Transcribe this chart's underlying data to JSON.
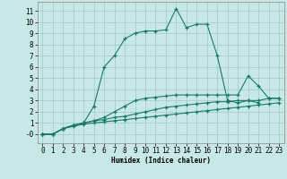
{
  "xlabel": "Humidex (Indice chaleur)",
  "bg_color": "#c8e8e8",
  "grid_color": "#a0c8c8",
  "line_color": "#1a7a6a",
  "xlim": [
    -0.5,
    23.5
  ],
  "ylim": [
    -0.8,
    11.8
  ],
  "xticks": [
    0,
    1,
    2,
    3,
    4,
    5,
    6,
    7,
    8,
    9,
    10,
    11,
    12,
    13,
    14,
    15,
    16,
    17,
    18,
    19,
    20,
    21,
    22,
    23
  ],
  "yticks": [
    0,
    1,
    2,
    3,
    4,
    5,
    6,
    7,
    8,
    9,
    10,
    11
  ],
  "ytick_labels": [
    "-0",
    "1",
    "2",
    "3",
    "4",
    "5",
    "6",
    "7",
    "8",
    "9",
    "10",
    "11"
  ],
  "lines": [
    {
      "x": [
        0,
        1,
        2,
        3,
        4,
        5,
        6,
        7,
        8,
        9,
        10,
        11,
        12,
        13,
        14,
        15,
        16,
        17,
        18,
        19,
        20,
        21
      ],
      "y": [
        0,
        0,
        0.5,
        0.8,
        1.0,
        2.5,
        6.0,
        7.0,
        8.5,
        9.0,
        9.2,
        9.2,
        9.3,
        11.2,
        9.5,
        9.8,
        9.8,
        7.0,
        3.0,
        2.8,
        3.0,
        2.8
      ]
    },
    {
      "x": [
        0,
        1,
        2,
        3,
        4,
        5,
        6,
        7,
        8,
        9,
        10,
        11,
        12,
        13,
        14,
        15,
        16,
        17,
        18,
        19,
        20,
        21,
        22,
        23
      ],
      "y": [
        0,
        0,
        0.5,
        0.8,
        1.0,
        1.2,
        1.5,
        2.0,
        2.5,
        3.0,
        3.2,
        3.3,
        3.4,
        3.5,
        3.5,
        3.5,
        3.5,
        3.5,
        3.5,
        3.5,
        5.2,
        4.3,
        3.2,
        3.2
      ]
    },
    {
      "x": [
        0,
        1,
        2,
        3,
        4,
        5,
        6,
        7,
        8,
        9,
        10,
        11,
        12,
        13,
        14,
        15,
        16,
        17,
        18,
        19,
        20,
        21,
        22,
        23
      ],
      "y": [
        0,
        0,
        0.5,
        0.8,
        1.0,
        1.2,
        1.3,
        1.5,
        1.6,
        1.8,
        2.0,
        2.2,
        2.4,
        2.5,
        2.6,
        2.7,
        2.8,
        2.9,
        2.9,
        3.0,
        3.0,
        3.0,
        3.2,
        3.2
      ]
    },
    {
      "x": [
        0,
        1,
        2,
        3,
        4,
        5,
        6,
        7,
        8,
        9,
        10,
        11,
        12,
        13,
        14,
        15,
        16,
        17,
        18,
        19,
        20,
        21,
        22,
        23
      ],
      "y": [
        0,
        0,
        0.5,
        0.7,
        0.9,
        1.0,
        1.1,
        1.2,
        1.3,
        1.4,
        1.5,
        1.6,
        1.7,
        1.8,
        1.9,
        2.0,
        2.1,
        2.2,
        2.3,
        2.4,
        2.5,
        2.6,
        2.7,
        2.8
      ]
    }
  ]
}
